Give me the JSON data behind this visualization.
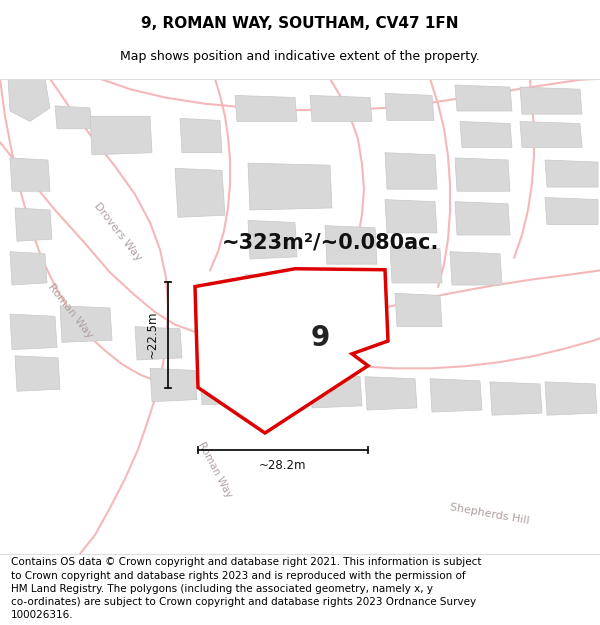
{
  "title": "9, ROMAN WAY, SOUTHAM, CV47 1FN",
  "subtitle": "Map shows position and indicative extent of the property.",
  "area_text": "~323m²/~0.080ac.",
  "width_label": "~28.2m",
  "height_label": "~22.5m",
  "plot_number": "9",
  "footer_text": "Contains OS data © Crown copyright and database right 2021. This information is subject to Crown copyright and database rights 2023 and is reproduced with the permission of HM Land Registry. The polygons (including the associated geometry, namely x, y co-ordinates) are subject to Crown copyright and database rights 2023 Ordnance Survey 100026316.",
  "map_bg": "#ffffff",
  "road_color": "#f5b8b8",
  "road_fill": "#fce8e8",
  "building_color": "#d8d8d8",
  "building_ec": "#c8c8c8",
  "plot_outline_color": "#dd0000",
  "plot_fill_color": "#ffffff",
  "dim_color": "#111111",
  "road_label_color": "#b0a0a0",
  "title_fontsize": 11,
  "subtitle_fontsize": 9,
  "area_fontsize": 15,
  "plot_num_fontsize": 20,
  "footer_fontsize": 7.5
}
